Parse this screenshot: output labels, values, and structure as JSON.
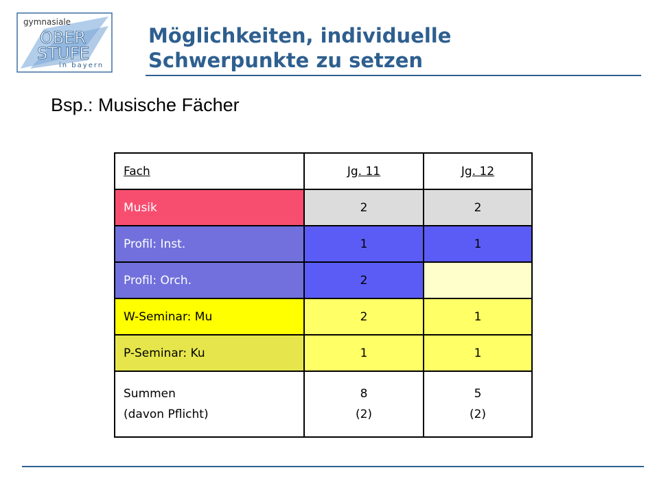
{
  "logo": {
    "line1": "gymnasiale",
    "line2": "OBER",
    "line3": "STUFE",
    "line4": "in bayern"
  },
  "header": {
    "title_line1": "Möglichkeiten, individuelle",
    "title_line2": "Schwerpunkte zu setzen"
  },
  "subtitle": "Bsp.: Musische Fächer",
  "table": {
    "headers": [
      "Fach",
      "Jg. 11",
      "Jg. 12"
    ],
    "rows": [
      {
        "fach": "Musik",
        "jg11": "2",
        "jg12": "2"
      },
      {
        "fach": "Profil: Inst.",
        "jg11": "1",
        "jg12": "1"
      },
      {
        "fach": "Profil: Orch.",
        "jg11": "2",
        "jg12": ""
      },
      {
        "fach": "W-Seminar: Mu",
        "jg11": "2",
        "jg12": "1"
      },
      {
        "fach": "P-Seminar: Ku",
        "jg11": "1",
        "jg12": "1"
      }
    ],
    "summen": {
      "label_line1": "Summen",
      "label_line2": "(davon Pflicht)",
      "jg11_line1": "8",
      "jg11_line2": "(2)",
      "jg12_line1": "5",
      "jg12_line2": "(2)"
    }
  },
  "colors": {
    "title": "#2e5f8f",
    "musik": "#f74e70",
    "grey": "#dcdcdc",
    "profil_label": "#7170dc",
    "profil_value": "#5b5cf5",
    "pale_yellow": "#ffffcc",
    "bright_yellow": "#ffff00",
    "light_yellow": "#ffff66",
    "olive_yellow": "#e6e64c"
  }
}
